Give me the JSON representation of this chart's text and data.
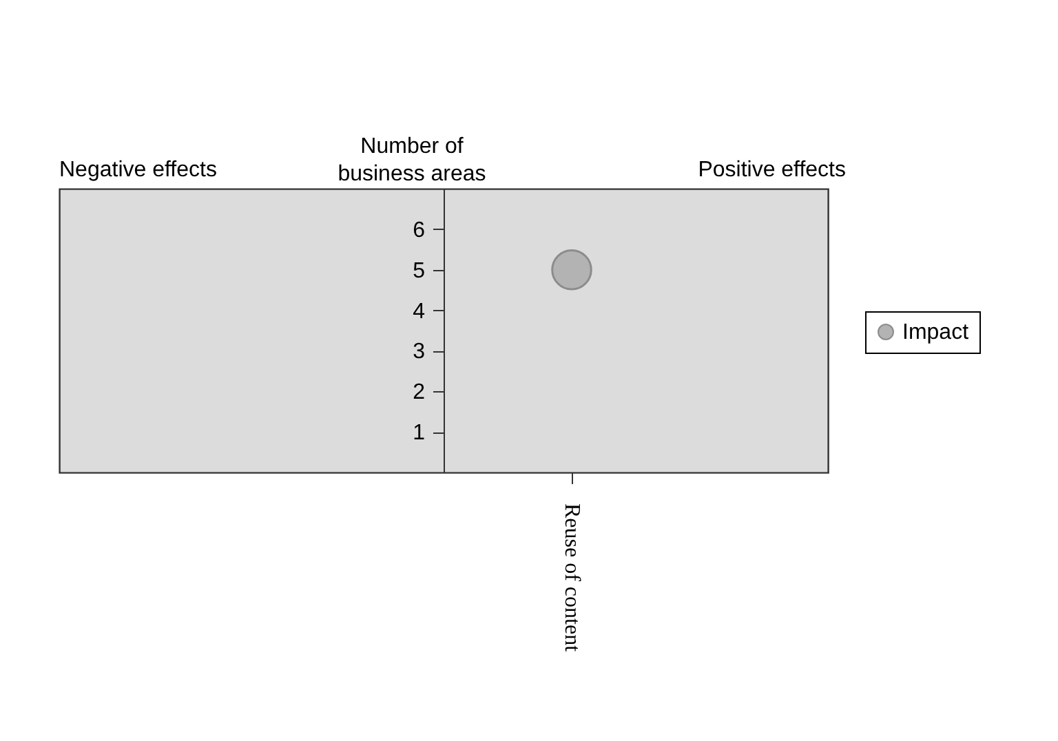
{
  "chart_data": {
    "type": "bubble",
    "ylabel": "Number of business areas",
    "annotations": [
      "Negative effects",
      "Positive effects"
    ],
    "categories": [
      "Reuse of content"
    ],
    "series": [
      {
        "name": "Impact",
        "color": "#b3b3b3",
        "values": [
          5
        ],
        "sizes": [
          1
        ]
      }
    ],
    "ylim": [
      0,
      7
    ],
    "yticks": [
      1,
      2,
      3,
      4,
      5,
      6
    ],
    "grid": false,
    "legend": "right",
    "marker": "circle"
  }
}
